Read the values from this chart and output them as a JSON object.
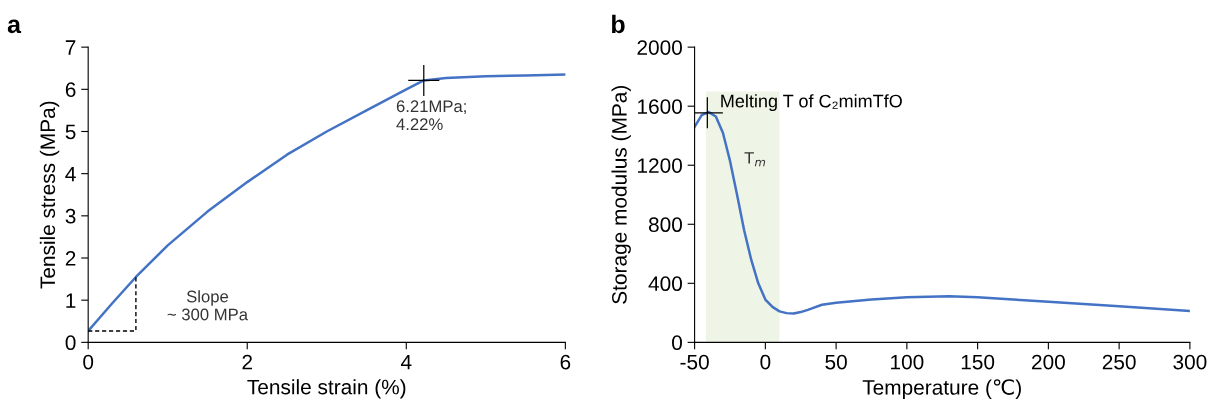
{
  "chart_data": [
    {
      "type": "line",
      "title": "a",
      "xlabel": "Tensile strain (%)",
      "ylabel": "Tensile stress (MPa)",
      "xlim": [
        0,
        6
      ],
      "xticks": [
        0,
        2,
        4,
        6
      ],
      "ylim": [
        0,
        7
      ],
      "yticks": [
        0,
        1,
        2,
        3,
        4,
        5,
        6,
        7
      ],
      "grid": false,
      "legend": false,
      "series": [
        {
          "color": "#4472c4",
          "x": [
            0,
            0.3,
            0.6,
            1,
            1.5,
            2,
            2.5,
            3,
            3.5,
            4,
            4.22,
            4.5,
            5,
            5.5,
            6
          ],
          "values": [
            0.27,
            0.92,
            1.55,
            2.3,
            3.1,
            3.8,
            4.45,
            5.0,
            5.5,
            6.0,
            6.21,
            6.27,
            6.31,
            6.33,
            6.35
          ]
        },
        {
          "type": "line",
          "color": "#000000",
          "line_style": "dashed",
          "x": [
            0,
            0.6,
            0.6
          ],
          "values": [
            0.27,
            0.27,
            1.55
          ]
        },
        {
          "type": "scatter",
          "color": "#000000",
          "marker": "cross",
          "x": [
            4.22
          ],
          "values": [
            6.21
          ]
        }
      ],
      "annotations": [
        {
          "text": "6.21MPa;\n4.22%",
          "x": 4.22,
          "y": 6.21
        },
        "Slope\n~ 300 MPa"
      ]
    },
    {
      "type": "line",
      "title": "b",
      "xlabel": "Temperature (℃)",
      "ylabel": "Storage modulus (MPa)",
      "xlim": [
        -50,
        300
      ],
      "xticks": [
        -50,
        0,
        50,
        100,
        150,
        200,
        250,
        300
      ],
      "ylim": [
        0,
        2000
      ],
      "yticks": [
        0,
        400,
        800,
        1200,
        1600,
        2000
      ],
      "grid": false,
      "legend": false,
      "bands": [
        {
          "axis": "x",
          "from": -42,
          "to": 10,
          "label": "Melting T of C₂mimTfO",
          "color": "#eef5e6"
        }
      ],
      "series": [
        {
          "color": "#4472c4",
          "x": [
            -50,
            -45,
            -40,
            -35,
            -30,
            -25,
            -20,
            -15,
            -10,
            -5,
            0,
            5,
            10,
            15,
            20,
            25,
            30,
            40,
            50,
            75,
            100,
            130,
            150,
            175,
            200,
            250,
            300
          ],
          "values": [
            1460,
            1540,
            1560,
            1530,
            1420,
            1230,
            1000,
            760,
            560,
            400,
            290,
            240,
            210,
            198,
            195,
            205,
            220,
            255,
            268,
            290,
            305,
            312,
            305,
            290,
            275,
            245,
            212
          ]
        },
        {
          "type": "scatter",
          "color": "#000000",
          "marker": "cross",
          "x": [
            -41
          ],
          "values": [
            1555
          ]
        }
      ],
      "annotations": [
        "T$_{m}$"
      ]
    }
  ]
}
